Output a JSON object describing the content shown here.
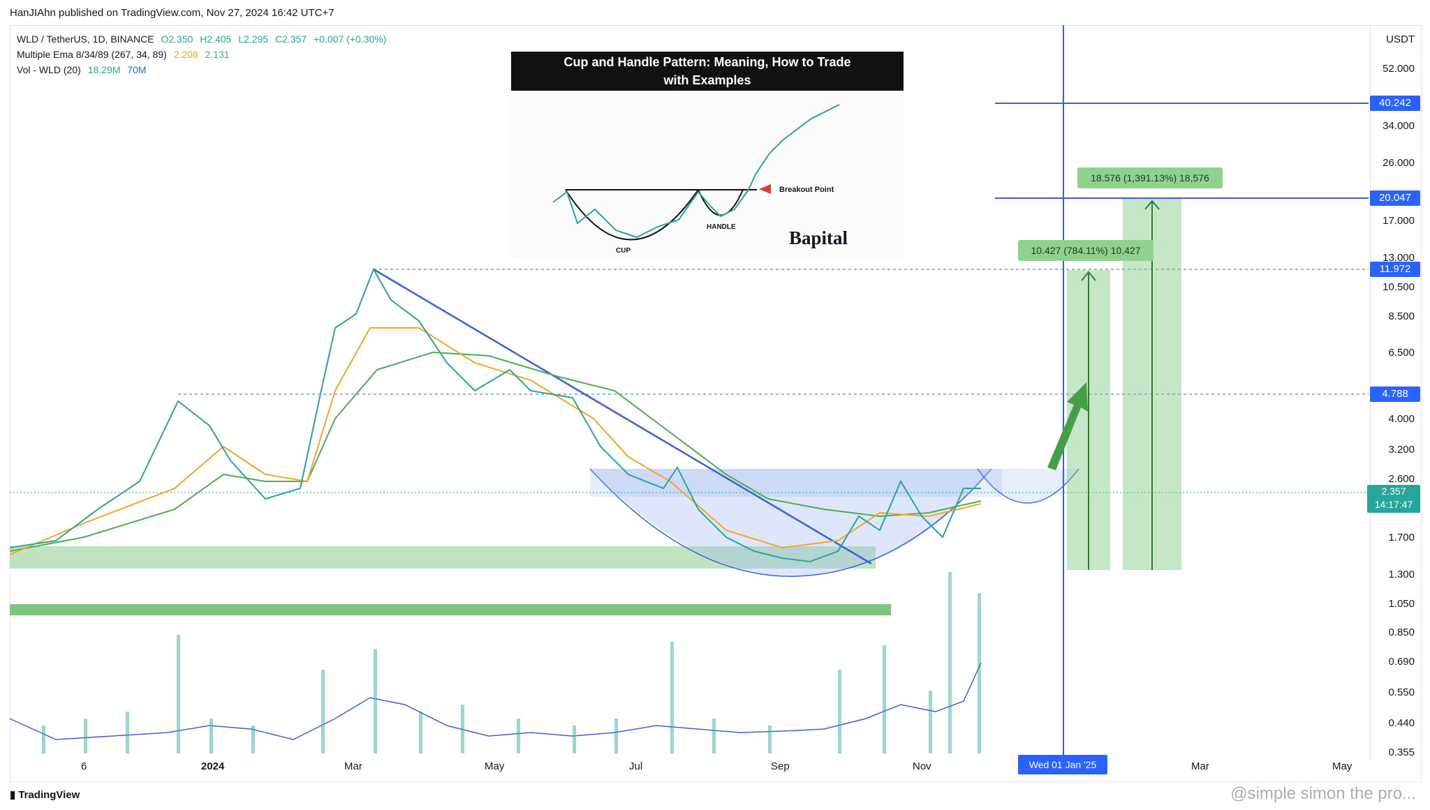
{
  "publish_info": "HanJIAhn published on TradingView.com, Nov 27, 2024 16:42 UTC+7",
  "legend": {
    "symbol": "WLD / TetherUS, 1D, BINANCE",
    "open": "O2.350",
    "high": "H2.405",
    "low": "L2.295",
    "close": "C2.357",
    "change": "+0.007 (+0.30%)",
    "ema_label": "Multiple Ema 8/34/89 (267, 34, 89)",
    "ema_v1": "2.208",
    "ema_v2": "2.131",
    "vol_label": "Vol - WLD (20)",
    "vol_v1": "18.29M",
    "vol_v2": "70M"
  },
  "inset": {
    "title_line1": "Cup and Handle Pattern: Meaning, How to Trade",
    "title_line2": "with Examples",
    "breakout_label": "Breakout Point",
    "cup_label": "CUP",
    "handle_label": "HANDLE",
    "brand": "Bapital"
  },
  "callouts": {
    "target1": "10.427 (784.11%) 10,427",
    "target2": "18.576 (1,391.13%) 18,576"
  },
  "price_axis": {
    "currency": "USDT",
    "labels": [
      "52.000",
      "34.000",
      "26.000",
      "17.000",
      "13.000",
      "10.500",
      "8.500",
      "6.500",
      "4.000",
      "3.200",
      "2.600",
      "1.700",
      "1.300",
      "1.050",
      "0.850",
      "0.690",
      "0.550",
      "0.440",
      "0.355"
    ],
    "badges": {
      "b1": "40.242",
      "b2": "20.047",
      "b3": "11.972",
      "b4": "4.788",
      "current_price": "2.357",
      "countdown": "14:17:47"
    }
  },
  "time_axis": {
    "labels": [
      "6",
      "2024",
      "Mar",
      "May",
      "Jul",
      "Sep",
      "Nov",
      "Mar",
      "May"
    ],
    "crosshair_label": "Wed 01 Jan '25"
  },
  "footer": {
    "logo_text": "TradingView",
    "watermark": "@simple simon the pro..."
  },
  "colors": {
    "candle_up": "#26a69a",
    "candle_down": "#ef5350",
    "ema_fast": "#f5a623",
    "ema_slow": "#4caf50",
    "trendline": "#3d5fd9",
    "zone_green": "#81c784",
    "accent_blue": "#2962ff"
  }
}
